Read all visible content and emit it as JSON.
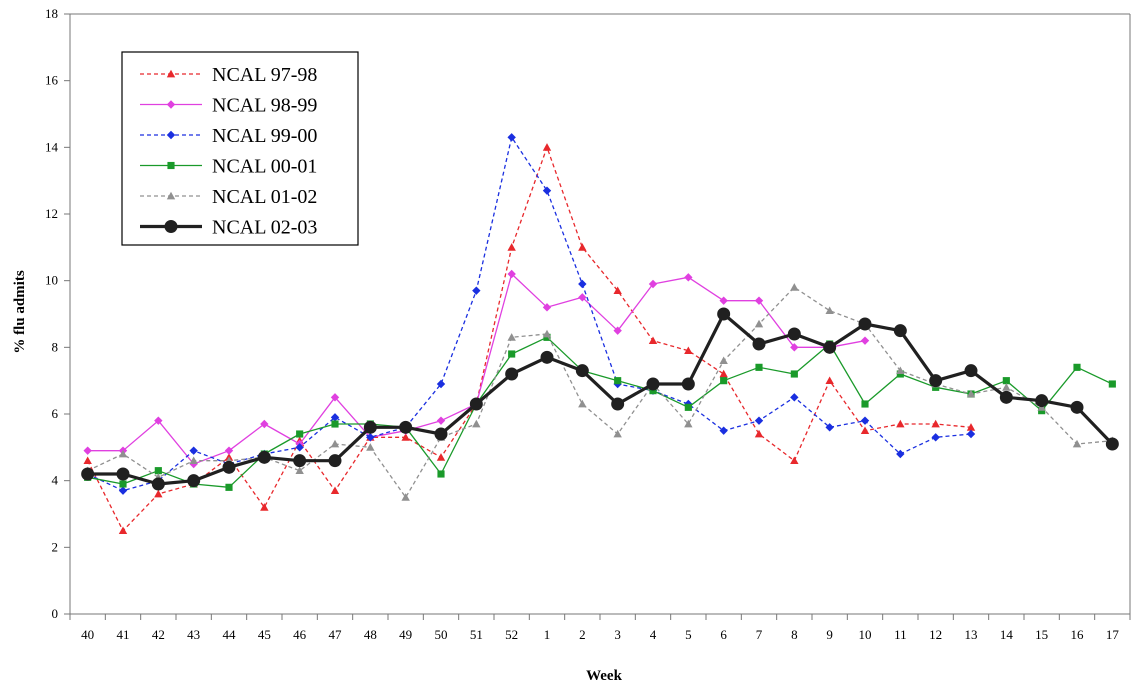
{
  "chart_data": {
    "type": "line",
    "title": "",
    "xlabel": "Week",
    "ylabel": "% flu admits",
    "ylim": [
      0,
      18
    ],
    "yticks": [
      "0",
      "2",
      "4",
      "6",
      "8",
      "10",
      "12",
      "14",
      "16",
      "18"
    ],
    "categories": [
      "40",
      "41",
      "42",
      "43",
      "44",
      "45",
      "46",
      "47",
      "48",
      "49",
      "50",
      "51",
      "52",
      "1",
      "2",
      "3",
      "4",
      "5",
      "6",
      "7",
      "8",
      "9",
      "10",
      "11",
      "12",
      "13",
      "14",
      "15",
      "16",
      "17"
    ],
    "grid": false,
    "legend_position": "top-left",
    "series": [
      {
        "name": "NCAL 97-98",
        "color": "#e8282c",
        "dash": "4,3",
        "marker": "triangle",
        "width": 1.3,
        "values": [
          4.6,
          2.5,
          3.6,
          3.9,
          4.7,
          3.2,
          5.2,
          3.7,
          5.3,
          5.3,
          4.7,
          6.3,
          11.0,
          14.0,
          11.0,
          9.7,
          8.2,
          7.9,
          7.2,
          5.4,
          4.6,
          7.0,
          5.5,
          5.7,
          5.7,
          5.6,
          null,
          null,
          null,
          null
        ]
      },
      {
        "name": "NCAL 98-99",
        "color": "#e040e0",
        "dash": "",
        "marker": "diamond",
        "width": 1.3,
        "values": [
          4.9,
          4.9,
          5.8,
          4.5,
          4.9,
          5.7,
          5.1,
          6.5,
          5.3,
          5.5,
          5.8,
          6.3,
          10.2,
          9.2,
          9.5,
          8.5,
          9.9,
          10.1,
          9.4,
          9.4,
          8.0,
          8.0,
          8.2,
          null,
          null,
          null,
          null,
          null,
          null,
          null
        ]
      },
      {
        "name": "NCAL 99-00",
        "color": "#1a2fe0",
        "dash": "4,3",
        "marker": "diamond",
        "width": 1.3,
        "values": [
          4.2,
          3.7,
          4.0,
          4.9,
          4.5,
          4.8,
          5.0,
          5.9,
          5.3,
          5.6,
          6.9,
          9.7,
          14.3,
          12.7,
          9.9,
          6.9,
          6.7,
          6.3,
          5.5,
          5.8,
          6.5,
          5.6,
          5.8,
          4.8,
          5.3,
          5.4,
          null,
          null,
          null,
          null
        ]
      },
      {
        "name": "NCAL 00-01",
        "color": "#1a9a2a",
        "dash": "",
        "marker": "square",
        "width": 1.3,
        "values": [
          4.1,
          3.9,
          4.3,
          3.9,
          3.8,
          4.8,
          5.4,
          5.7,
          5.7,
          5.6,
          4.2,
          6.3,
          7.8,
          8.3,
          7.3,
          7.0,
          6.7,
          6.2,
          7.0,
          7.4,
          7.2,
          8.1,
          6.3,
          7.2,
          6.8,
          6.6,
          7.0,
          6.1,
          7.4,
          6.9
        ]
      },
      {
        "name": "NCAL 01-02",
        "color": "#909090",
        "dash": "4,3",
        "marker": "triangle",
        "width": 1.3,
        "values": [
          4.3,
          4.8,
          4.1,
          4.6,
          4.6,
          4.7,
          4.3,
          5.1,
          5.0,
          3.5,
          5.3,
          5.7,
          8.3,
          8.4,
          6.3,
          5.4,
          6.9,
          5.7,
          7.6,
          8.7,
          9.8,
          9.1,
          8.7,
          7.3,
          6.9,
          6.6,
          6.8,
          6.2,
          5.1,
          5.2
        ]
      },
      {
        "name": "NCAL 02-03",
        "color": "#202020",
        "dash": "",
        "marker": "circle",
        "width": 3.2,
        "values": [
          4.2,
          4.2,
          3.9,
          4.0,
          4.4,
          4.7,
          4.6,
          4.6,
          5.6,
          5.6,
          5.4,
          6.3,
          7.2,
          7.7,
          7.3,
          6.3,
          6.9,
          6.9,
          9.0,
          8.1,
          8.4,
          8.0,
          8.7,
          8.5,
          7.0,
          7.3,
          6.5,
          6.4,
          6.2,
          5.1
        ]
      }
    ]
  }
}
